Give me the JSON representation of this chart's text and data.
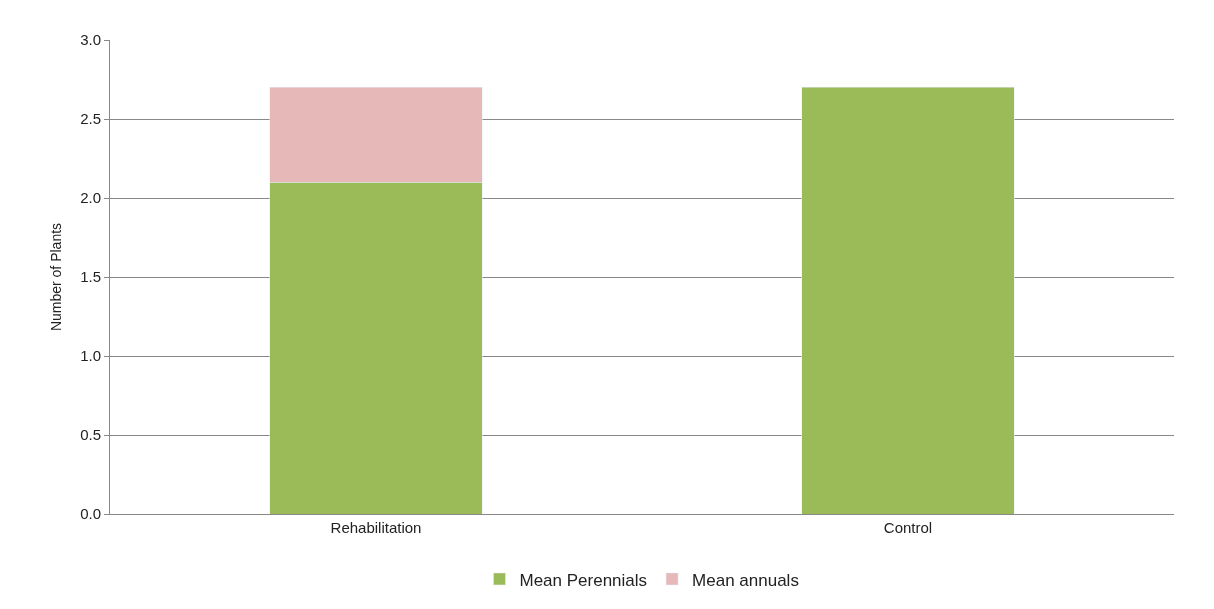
{
  "chart_data": {
    "type": "bar",
    "stacked": true,
    "ylabel": "Number of Plants",
    "categories": [
      "Rehabilitation",
      "Control"
    ],
    "series": [
      {
        "name": "Mean Perennials",
        "color": "#9bbb59",
        "values": [
          2.1,
          2.7
        ]
      },
      {
        "name": "Mean annuals",
        "color": "#e6b9b8",
        "values": [
          0.6,
          null
        ]
      }
    ],
    "ylim": [
      0,
      3
    ],
    "yticks": [
      {
        "value": 0,
        "label": "0.0"
      },
      {
        "value": 0.5,
        "label": "0.5"
      },
      {
        "value": 1,
        "label": "1.0"
      },
      {
        "value": 1.5,
        "label": "1.5"
      },
      {
        "value": 2,
        "label": "2.0"
      },
      {
        "value": 2.5,
        "label": "2.5"
      },
      {
        "value": 3,
        "label": "3.0"
      }
    ],
    "grid": "y",
    "legend": "bottom"
  }
}
